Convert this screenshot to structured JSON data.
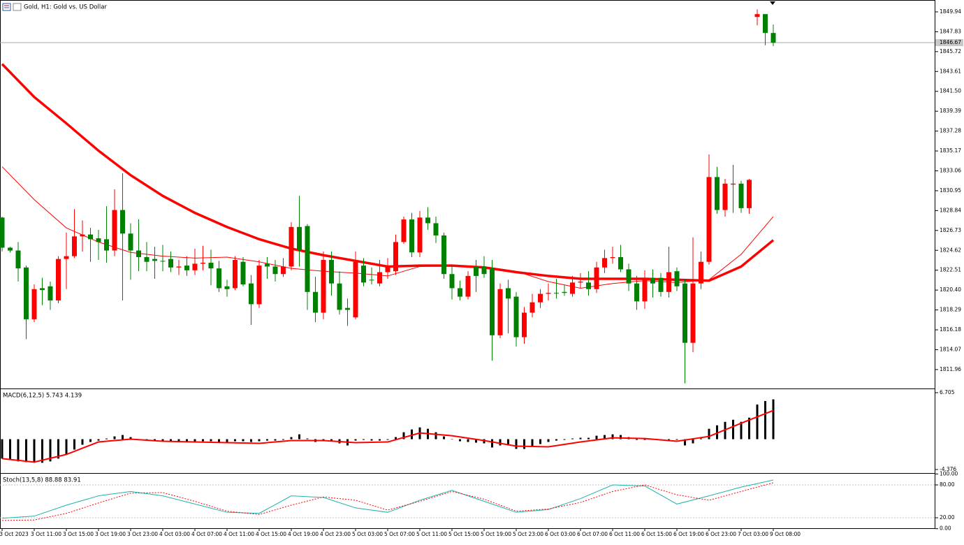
{
  "chart_data": [
    {
      "type": "candlestick",
      "title": "Gold, H1:  Gold vs. US Dollar",
      "categories": [
        "3 Oct 2023",
        null,
        null,
        null,
        "3 Oct 11:00",
        null,
        null,
        null,
        "3 Oct 15:00",
        null,
        null,
        null,
        "3 Oct 19:00",
        null,
        null,
        null,
        "3 Oct 23:00",
        null,
        null,
        null,
        "4 Oct 03:00",
        null,
        null,
        null,
        "4 Oct 07:00",
        null,
        null,
        null,
        "4 Oct 11:00",
        null,
        null,
        null,
        "4 Oct 15:00",
        null,
        null,
        null,
        "4 Oct 19:00",
        null,
        null,
        null,
        "4 Oct 23:00",
        null,
        null,
        null,
        "5 Oct 03:00",
        null,
        null,
        null,
        "5 Oct 07:00",
        null,
        null,
        null,
        "5 Oct 11:00",
        null,
        null,
        null,
        "5 Oct 15:00",
        null,
        null,
        null,
        "5 Oct 19:00",
        null,
        null,
        null,
        "5 Oct 23:00",
        null,
        null,
        null,
        "6 Oct 03:00",
        null,
        null,
        null,
        "6 Oct 07:00",
        null,
        null,
        null,
        "6 Oct 11:00",
        null,
        null,
        null,
        "6 Oct 15:00",
        null,
        null,
        null,
        "6 Oct 19:00",
        null,
        null,
        null,
        "6 Oct 23:00",
        null,
        null,
        null,
        "7 Oct 03:00",
        null,
        null,
        null,
        "9 Oct 08:00"
      ],
      "open": [
        1828.1,
        1824.9,
        1824.6,
        1822.8,
        1817.3,
        1820.6,
        1820.8,
        1819.3,
        1823.7,
        1824.0,
        1826.1,
        1826.3,
        1825.9,
        1825.8,
        1824.6,
        1828.9,
        1826.4,
        1824.6,
        1823.9,
        1823.7,
        1823.5,
        1823.7,
        1822.8,
        1823.0,
        1822.5,
        1823.2,
        1823.3,
        1822.7,
        1820.8,
        1820.6,
        1823.4,
        1821.1,
        1818.9,
        1823.2,
        1822.9,
        1822.1,
        1822.9,
        1827.1,
        1827.2,
        1820.2,
        1818.0,
        1823.6,
        1821.1,
        1818.5,
        1817.5,
        1823.0,
        1821.5,
        1821.1,
        1822.3,
        1822.4,
        1825.5,
        1827.9,
        1824.4,
        1828.1,
        1827.5,
        1826.2,
        1822.1,
        1820.6,
        1819.7,
        1822.9,
        1822.9,
        1822.7,
        1815.6,
        1820.6,
        1819.7,
        1815.4,
        1818.0,
        1819.1,
        1820.0,
        1820.1,
        1820.2,
        1820.0,
        1821.2,
        1821.2,
        1820.5,
        1822.8,
        1823.8,
        1823.9,
        1822.6,
        1821.1,
        1819.2,
        1821.7,
        1821.7,
        1820.2,
        1822.4,
        1821.1,
        1814.8,
        1821.1,
        1823.4,
        1832.4,
        1828.9,
        1831.6,
        1831.7,
        1829.1,
        1849.4,
        1849.7,
        1847.7
      ],
      "high": [
        1828.2,
        1825.0,
        1825.5,
        1823.0,
        1821.0,
        1821.7,
        1821.3,
        1824.0,
        1826.5,
        1829.0,
        1827.8,
        1827.0,
        1826.8,
        1829.3,
        1831.1,
        1832.8,
        1827.5,
        1827.9,
        1825.5,
        1825.0,
        1825.2,
        1824.5,
        1823.6,
        1824.0,
        1824.8,
        1825.1,
        1824.7,
        1823.5,
        1821.5,
        1824.0,
        1823.9,
        1822.0,
        1823.6,
        1823.9,
        1823.6,
        1823.8,
        1827.6,
        1830.4,
        1827.4,
        1821.8,
        1824.5,
        1824.5,
        1822.4,
        1819.5,
        1824.5,
        1823.8,
        1822.8,
        1823.6,
        1823.8,
        1826.3,
        1828.2,
        1828.6,
        1828.8,
        1829.2,
        1828.2,
        1826.5,
        1823.0,
        1821.4,
        1822.4,
        1823.6,
        1824.0,
        1823.6,
        1821.1,
        1821.5,
        1820.2,
        1818.6,
        1820.0,
        1820.5,
        1821.1,
        1821.6,
        1820.9,
        1821.9,
        1822.2,
        1822.4,
        1823.4,
        1824.7,
        1825.0,
        1825.2,
        1823.2,
        1821.9,
        1822.5,
        1822.6,
        1822.2,
        1825.0,
        1822.8,
        1821.6,
        1826.0,
        1824.5,
        1834.8,
        1833.5,
        1832.2,
        1833.7,
        1832.0,
        1832.2,
        1850.2,
        1849.7,
        1848.6
      ],
      "low": [
        1824.5,
        1824.4,
        1821.3,
        1815.2,
        1817.0,
        1818.8,
        1818.3,
        1819.0,
        1820.5,
        1823.8,
        1824.5,
        1823.4,
        1823.6,
        1823.3,
        1824.0,
        1819.3,
        1821.5,
        1822.4,
        1822.4,
        1821.6,
        1822.4,
        1822.3,
        1822.0,
        1821.9,
        1822.0,
        1822.5,
        1820.9,
        1820.2,
        1819.7,
        1820.4,
        1820.8,
        1816.7,
        1818.5,
        1821.6,
        1821.3,
        1821.8,
        1822.5,
        1822.9,
        1818.3,
        1817.0,
        1817.3,
        1819.8,
        1817.8,
        1816.6,
        1817.3,
        1820.8,
        1821.0,
        1820.8,
        1821.6,
        1822.0,
        1825.3,
        1823.9,
        1823.9,
        1826.8,
        1825.4,
        1821.6,
        1819.4,
        1819.3,
        1819.4,
        1820.2,
        1821.7,
        1812.9,
        1815.3,
        1815.8,
        1814.4,
        1814.7,
        1817.5,
        1818.5,
        1819.3,
        1819.5,
        1819.8,
        1819.7,
        1820.6,
        1819.8,
        1820.1,
        1822.2,
        1823.2,
        1822.3,
        1820.3,
        1818.3,
        1818.4,
        1819.6,
        1819.7,
        1819.6,
        1820.3,
        1810.5,
        1813.8,
        1820.5,
        1823.1,
        1828.5,
        1828.2,
        1828.6,
        1828.6,
        1828.5,
        1848.5,
        1846.4,
        1846.3
      ],
      "close": [
        1824.9,
        1824.6,
        1822.7,
        1817.3,
        1820.5,
        1820.4,
        1819.3,
        1823.7,
        1824.0,
        1826.1,
        1826.3,
        1825.8,
        1825.5,
        1824.6,
        1828.9,
        1826.4,
        1824.6,
        1823.9,
        1823.4,
        1823.5,
        1823.5,
        1822.8,
        1822.9,
        1822.5,
        1823.2,
        1823.3,
        1822.7,
        1820.6,
        1820.5,
        1823.6,
        1821.0,
        1818.9,
        1823.0,
        1822.9,
        1822.1,
        1822.9,
        1827.1,
        1824.7,
        1820.2,
        1818.0,
        1823.6,
        1821.1,
        1818.3,
        1818.3,
        1823.4,
        1821.2,
        1821.5,
        1822.3,
        1823.0,
        1825.5,
        1827.9,
        1824.4,
        1828.1,
        1827.5,
        1826.2,
        1822.1,
        1820.6,
        1819.7,
        1821.9,
        1821.9,
        1822.1,
        1815.6,
        1820.5,
        1819.5,
        1815.4,
        1818.0,
        1819.1,
        1820.0,
        1820.1,
        1820.1,
        1820.1,
        1821.2,
        1821.3,
        1820.5,
        1822.8,
        1823.8,
        1823.9,
        1822.6,
        1821.1,
        1819.2,
        1821.7,
        1821.1,
        1820.2,
        1822.3,
        1820.8,
        1814.8,
        1821.1,
        1823.4,
        1832.4,
        1828.9,
        1831.7,
        1831.7,
        1829.1,
        1832.1,
        1849.7,
        1847.7,
        1846.67
      ],
      "up_color": "#ff0000",
      "down_color": "#008000",
      "lines": [
        {
          "color": "#ff0000",
          "x": [
            0,
            4,
            8,
            12,
            16,
            20,
            24,
            28,
            32,
            36,
            40,
            44,
            48,
            52,
            56,
            60,
            64,
            68,
            72,
            76,
            80,
            84,
            88,
            92,
            96
          ],
          "values": [
            1844.4,
            1840.9,
            1838.1,
            1835.2,
            1832.6,
            1830.4,
            1828.6,
            1827.1,
            1825.8,
            1824.8,
            1824.1,
            1823.5,
            1822.9,
            1823.0,
            1823.0,
            1822.8,
            1822.3,
            1821.9,
            1821.6,
            1821.6,
            1821.6,
            1821.5,
            1821.4,
            1822.9,
            1825.7
          ]
        },
        {
          "color": "#ff0000",
          "x": [
            0,
            4,
            8,
            12,
            16,
            20,
            24,
            28,
            32,
            36,
            40,
            44,
            48,
            52,
            56,
            60,
            64,
            68,
            72,
            76,
            80,
            84,
            88,
            92,
            96
          ],
          "values": [
            1833.5,
            1830.0,
            1827.0,
            1825.5,
            1824.4,
            1824.0,
            1823.8,
            1823.9,
            1823.4,
            1822.7,
            1822.4,
            1822.2,
            1821.9,
            1822.9,
            1823.0,
            1822.9,
            1822.4,
            1821.3,
            1820.6,
            1821.1,
            1821.4,
            1821.2,
            1821.5,
            1824.2,
            1828.2
          ]
        }
      ],
      "last_price": 1846.67,
      "ylim": [
        1809.95,
        1851.2
      ],
      "yticks": [
        1849.94,
        1847.83,
        1845.72,
        1843.61,
        {
          "value": 1841.5,
          "label": "1841.50"
        },
        1839.39,
        1837.28,
        1835.17,
        1833.06,
        1830.95,
        1828.84,
        1826.73,
        1824.62,
        1822.51,
        {
          "value": 1820.4,
          "label": "1820.40"
        },
        1818.29,
        1816.18,
        1814.07,
        1811.96
      ]
    },
    {
      "type": "macd",
      "title": "MACD(6,12,5) 5.743 4.139",
      "histogram": {
        "color": "#000000",
        "values": [
          -2.8,
          -3.0,
          -3.2,
          -3.3,
          -3.4,
          -3.4,
          -3.2,
          -2.8,
          -2.2,
          -1.5,
          -0.8,
          -0.4,
          -0.2,
          0.1,
          0.4,
          0.6,
          0.3,
          0.0,
          -0.1,
          -0.2,
          -0.3,
          -0.3,
          -0.3,
          -0.3,
          -0.3,
          -0.3,
          -0.3,
          -0.4,
          -0.4,
          -0.3,
          -0.3,
          -0.4,
          -0.3,
          -0.2,
          -0.2,
          -0.1,
          0.3,
          0.7,
          0.1,
          -0.4,
          -0.3,
          -0.2,
          -0.6,
          -0.9,
          -0.2,
          -0.1,
          -0.2,
          -0.2,
          -0.1,
          0.3,
          1.0,
          1.4,
          1.7,
          1.5,
          1.0,
          0.4,
          0.0,
          -0.3,
          -0.4,
          -0.5,
          -0.6,
          -1.2,
          -0.9,
          -0.9,
          -1.4,
          -1.4,
          -1.1,
          -0.7,
          -0.4,
          -0.2,
          -0.1,
          0.1,
          0.2,
          0.2,
          0.5,
          0.6,
          0.7,
          0.6,
          0.3,
          -0.1,
          -0.1,
          -0.1,
          -0.2,
          -0.1,
          -0.1,
          -0.9,
          -0.6,
          0.1,
          1.5,
          2.0,
          2.5,
          2.8,
          2.5,
          3.1,
          5.0,
          5.5,
          5.743
        ]
      },
      "signal": {
        "color": "#ff0000",
        "x": [
          0,
          4,
          8,
          12,
          16,
          20,
          24,
          28,
          32,
          36,
          40,
          44,
          48,
          52,
          56,
          60,
          64,
          68,
          72,
          76,
          80,
          84,
          88,
          92,
          96
        ],
        "values": [
          -2.8,
          -3.3,
          -2.2,
          -0.4,
          0.0,
          -0.3,
          -0.4,
          -0.5,
          -0.6,
          -0.2,
          -0.2,
          -0.5,
          -0.4,
          0.9,
          0.5,
          -0.2,
          -1.0,
          -1.1,
          -0.4,
          0.2,
          0.1,
          -0.3,
          0.4,
          2.3,
          4.139
        ]
      },
      "ylim": [
        -4.376,
        6.705
      ],
      "yticks": [
        6.705,
        -4.376
      ]
    },
    {
      "type": "stochastic",
      "title": "Stoch(13,5,8) 88.88 83.91",
      "series": [
        {
          "color": "#20b2aa",
          "x": [
            0,
            4,
            8,
            12,
            16,
            20,
            24,
            28,
            32,
            36,
            40,
            44,
            48,
            52,
            56,
            60,
            64,
            68,
            72,
            76,
            80,
            84,
            88,
            92,
            96
          ],
          "values": [
            19,
            23,
            43,
            60,
            68,
            60,
            45,
            30,
            28,
            60,
            57,
            38,
            30,
            52,
            70,
            50,
            30,
            35,
            55,
            80,
            78,
            45,
            60,
            76,
            88.88
          ]
        },
        {
          "color": "#ff0000",
          "x": [
            0,
            4,
            8,
            12,
            16,
            20,
            24,
            28,
            32,
            36,
            40,
            44,
            48,
            52,
            56,
            60,
            64,
            68,
            72,
            76,
            80,
            84,
            88,
            92,
            96
          ],
          "values": [
            15,
            16,
            28,
            47,
            65,
            66,
            50,
            32,
            26,
            43,
            58,
            52,
            34,
            50,
            68,
            54,
            32,
            36,
            48,
            68,
            80,
            62,
            52,
            68,
            83.91
          ]
        }
      ],
      "ylim": [
        0,
        100
      ],
      "yticks": [
        {
          "value": 100,
          "label": "100.00"
        },
        {
          "value": 80,
          "label": "80.00"
        },
        {
          "value": 20,
          "label": "20.00"
        },
        {
          "value": 0,
          "label": "0.00"
        }
      ]
    }
  ]
}
